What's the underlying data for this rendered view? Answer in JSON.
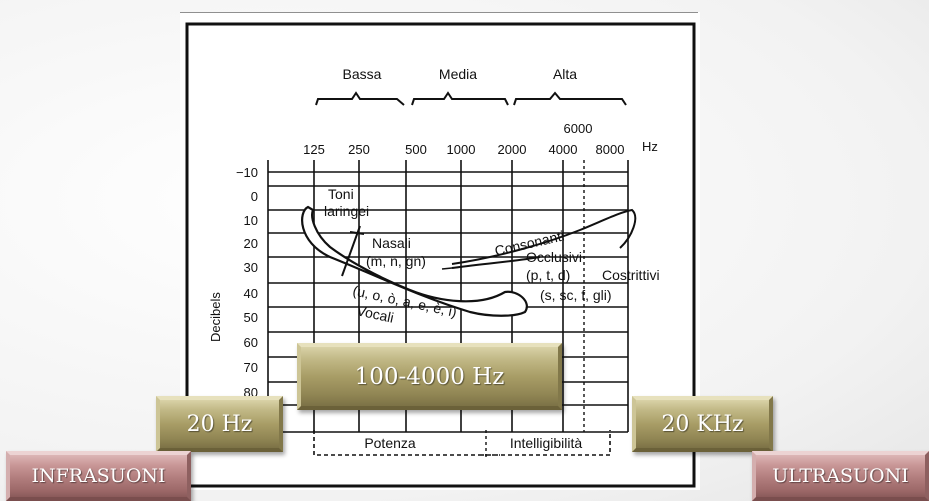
{
  "diagram": {
    "band_labels": {
      "low": "Bassa",
      "mid": "Media",
      "high": "Alta"
    },
    "freq_labels": [
      "125",
      "250",
      "500",
      "1000",
      "2000",
      "4000",
      "8000"
    ],
    "freq_extra": "6000",
    "freq_unit": "Hz",
    "db_labels": [
      "−10",
      "0",
      "10",
      "20",
      "30",
      "40",
      "50",
      "60",
      "70",
      "80"
    ],
    "db_axis_title": "Decibels",
    "annotations": {
      "toni_1": "Toni",
      "toni_2": "laringei",
      "nasali_1": "Nasali",
      "nasali_2": "(m, n, gn)",
      "consonanti": "Consonanti",
      "occlusivi_1": "Occlusivi",
      "occlusivi_2": "(p, t, d)",
      "costrittivi_1": "Costrittivi",
      "costrittivi_2": "(s, sc, f, gli)",
      "vocali_list": "(u, o, ò, a, e, è, i)",
      "vocali": "Vocali"
    },
    "bottom_labels": {
      "potenza": "Potenza",
      "intelligibilita": "Intelligibilità"
    }
  },
  "overlays": {
    "speech_range": "100-4000 Hz",
    "low_limit": "20 Hz",
    "high_limit": "20 KHz",
    "infra": "INFRASUONI",
    "ultra": "ULTRASUONI"
  }
}
